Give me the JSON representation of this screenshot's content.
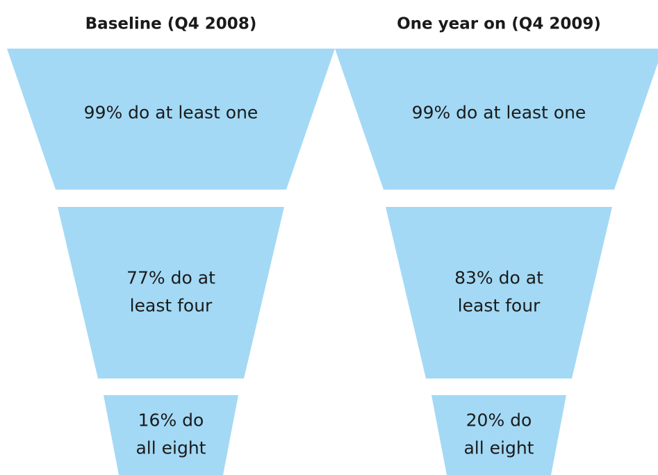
{
  "funnels": [
    {
      "title": "Baseline (Q4 2008)",
      "segments": [
        {
          "lines": [
            "99% do at least one"
          ]
        },
        {
          "lines": [
            "77% do at",
            "least four"
          ]
        },
        {
          "lines": [
            "16% do",
            "all eight"
          ]
        }
      ]
    },
    {
      "title": "One year on (Q4 2009)",
      "segments": [
        {
          "lines": [
            "99% do at least one"
          ]
        },
        {
          "lines": [
            "83% do at",
            "least four"
          ]
        },
        {
          "lines": [
            "20% do",
            "all eight"
          ]
        }
      ]
    }
  ]
}
